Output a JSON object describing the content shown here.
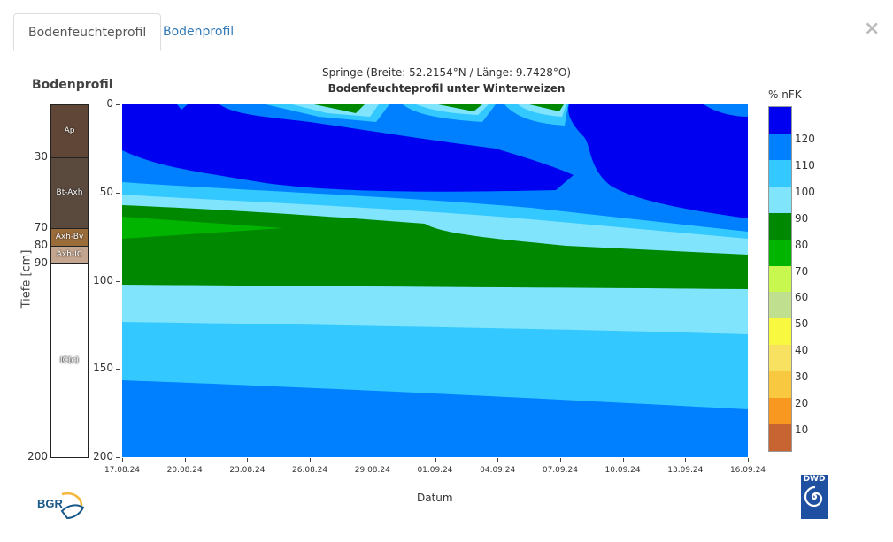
{
  "tabs": [
    {
      "label": "Bodenfeuchteprofil",
      "active": true
    },
    {
      "label": "Bodenprofil",
      "active": false
    }
  ],
  "close_label": "×",
  "soil_profile": {
    "title": "Bodenprofil",
    "axis_label": "Tiefe [cm]",
    "horizons": [
      {
        "name": "Ap",
        "from": 0,
        "to": 30,
        "color": "#604636"
      },
      {
        "name": "Bt-Axh",
        "from": 30,
        "to": 70,
        "color": "#5a4a3e"
      },
      {
        "name": "Axh-Bv",
        "from": 70,
        "to": 80,
        "color": "#9a6c3a"
      },
      {
        "name": "Axh-IC",
        "from": 80,
        "to": 90,
        "color": "#c4a690"
      },
      {
        "name": "IC(c)",
        "from": 90,
        "to": 200,
        "color": "#ffffff"
      }
    ],
    "depth_labels": [
      "30",
      "70",
      "80",
      "90",
      "200"
    ]
  },
  "chart_data": {
    "type": "heatmap",
    "title": "Springe (Breite: 52.2154°N / Länge: 9.7428°O)",
    "subtitle": "Bodenfeuchteprofil unter Winterweizen",
    "xlabel": "Datum",
    "ylabel": "Tiefe [cm]",
    "ylim": [
      200,
      0
    ],
    "yticks": [
      "0",
      "50",
      "100",
      "150",
      "200"
    ],
    "xticks": [
      "17.08.24",
      "20.08.24",
      "23.08.24",
      "26.08.24",
      "29.08.24",
      "01.09.24",
      "04.09.24",
      "07.09.24",
      "10.09.24",
      "13.09.24",
      "16.09.24"
    ],
    "colorbar": {
      "title": "% nFK",
      "labels": [
        "120",
        "110",
        "100",
        "90",
        "80",
        "70",
        "60",
        "50",
        "40",
        "30",
        "20",
        "10"
      ],
      "colors": [
        "#0000f0",
        "#0080ff",
        "#33c8ff",
        "#80e4fc",
        "#008800",
        "#00b400",
        "#c8f850",
        "#c0e090",
        "#f8f840",
        "#f8e060",
        "#f8c840",
        "#f89820",
        "#c86432"
      ]
    }
  },
  "logos": {
    "left": "BGR",
    "right": "DWD"
  }
}
